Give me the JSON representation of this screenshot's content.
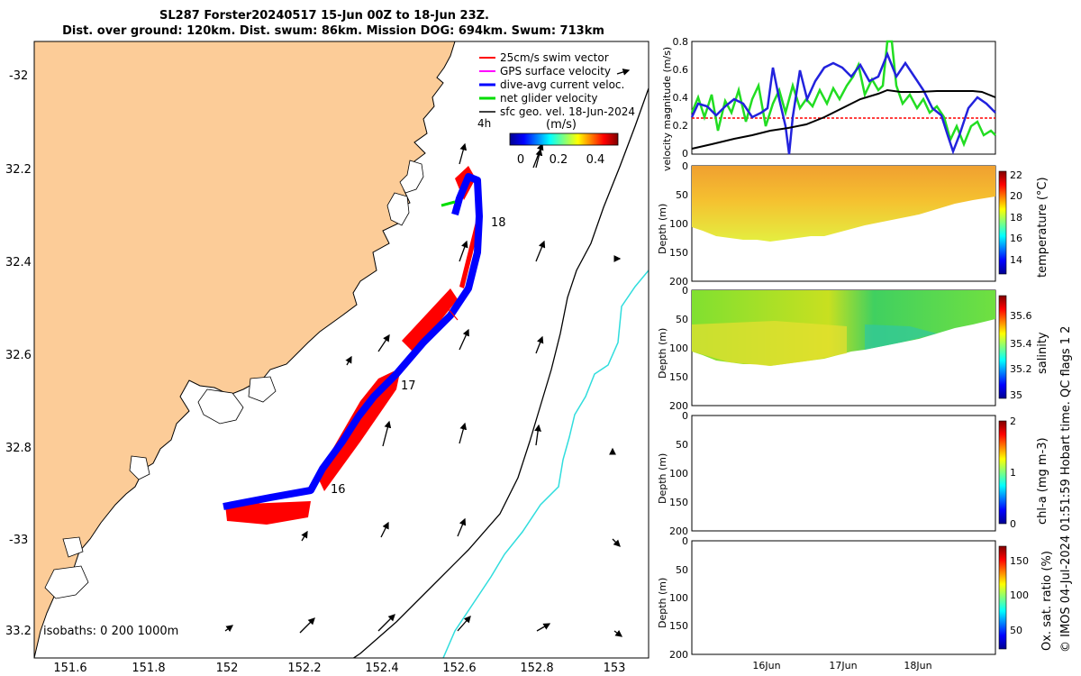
{
  "title": {
    "line1": "SL287 Forster20240517 15-Jun 00Z to 18-Jun 23Z.",
    "line2": "Dist. over ground: 120km. Dist. swum: 86km. Mission DOG: 694km. Swum: 713km"
  },
  "map": {
    "lat_ticks": [
      "-32",
      "32.2",
      "32.4",
      "32.6",
      "32.8",
      "-33",
      "33.2"
    ],
    "lon_ticks": [
      "151.6",
      "151.8",
      "152",
      "152.2",
      "152.4",
      "152.6",
      "152.8",
      "153"
    ],
    "legend": [
      {
        "label": "25cm/s swim vector",
        "color": "#ff0000"
      },
      {
        "label": "GPS surface velocity",
        "color": "#ff00ff"
      },
      {
        "label": "dive-avg current veloc.",
        "color": "#0000ff"
      },
      {
        "label": "net glider velocity",
        "color": "#00dd00"
      },
      {
        "label": "sfc geo. vel. 18-Jun-2024",
        "color": "#000000"
      }
    ],
    "interval_label": "4h",
    "colorbar_unit": "(m/s)",
    "colorbar_ticks": [
      "0",
      "0.2",
      "0.4"
    ],
    "day_labels": [
      "18",
      "17",
      "16"
    ],
    "isobaths_label": "isobaths: 0   200 1000m",
    "colors": {
      "land": "#fccc98",
      "track_blue": "#0000ff",
      "swim_red": "#ff0000"
    }
  },
  "panels": {
    "velocity": {
      "ylabel": "velocity magnitude (m/s)",
      "yticks": [
        "0.8",
        "0.6",
        "0.4",
        "0.2",
        "0"
      ]
    },
    "temperature": {
      "ylabel": "Depth (m)",
      "yticks": [
        "0",
        "50",
        "100",
        "150",
        "200"
      ],
      "cbar_label": "temperature (°C)",
      "cbar_ticks": [
        "22",
        "20",
        "18",
        "16",
        "14"
      ]
    },
    "salinity": {
      "ylabel": "Depth (m)",
      "yticks": [
        "0",
        "50",
        "100",
        "150",
        "200"
      ],
      "cbar_label": "salinity",
      "cbar_ticks": [
        "35.6",
        "35.4",
        "35.2",
        "35"
      ]
    },
    "chla": {
      "ylabel": "Depth (m)",
      "yticks": [
        "0",
        "50",
        "100",
        "150",
        "200"
      ],
      "cbar_label": "chl-a (mg m-3)",
      "cbar_ticks": [
        "2",
        "1",
        "0"
      ]
    },
    "oxygen": {
      "ylabel": "Depth (m)",
      "yticks": [
        "0",
        "50",
        "100",
        "150",
        "200"
      ],
      "cbar_label": "Ox. sat. ratio (%)",
      "cbar_ticks": [
        "150",
        "100",
        "50"
      ]
    },
    "xticks": [
      "16Jun",
      "17Jun",
      "18Jun"
    ]
  },
  "side_note": "© IMOS 04-Jul-2024 01:51:59 Hobart time. QC flags 1  2"
}
